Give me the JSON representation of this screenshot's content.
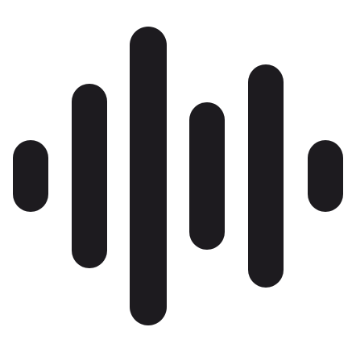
{
  "icon": {
    "name": "audio-waveform-icon",
    "color": "#1d1b1f",
    "background": "#ffffff",
    "bars": [
      {
        "name": "waveform-bar-1"
      },
      {
        "name": "waveform-bar-2"
      },
      {
        "name": "waveform-bar-3"
      },
      {
        "name": "waveform-bar-4"
      },
      {
        "name": "waveform-bar-5"
      },
      {
        "name": "waveform-bar-6"
      }
    ]
  }
}
